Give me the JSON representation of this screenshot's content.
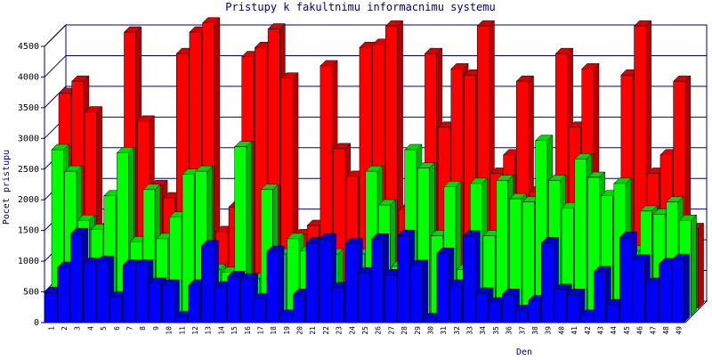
{
  "chart_data": {
    "type": "bar3d",
    "title": "Pristupy k fakultnimu informacnimu systemu",
    "x_label": "Den",
    "y_label": "Pocet pristupu",
    "categories": [
      "1",
      "2",
      "3",
      "4",
      "5",
      "6",
      "7",
      "8",
      "9",
      "10",
      "11",
      "12",
      "13",
      "14",
      "15",
      "16",
      "17",
      "18",
      "19",
      "20",
      "21",
      "22",
      "23",
      "24",
      "25",
      "26",
      "27",
      "28",
      "29",
      "30",
      "31",
      "32",
      "33",
      "34",
      "35",
      "36",
      "37",
      "38",
      "39",
      "40",
      "41",
      "42",
      "43",
      "44",
      "45",
      "46",
      "47",
      "48",
      "49"
    ],
    "series": [
      {
        "color": "#ff0000",
        "values": [
          3500,
          3700,
          3200,
          1300,
          1500,
          4500,
          3050,
          2000,
          1800,
          4150,
          4500,
          4650,
          1250,
          1650,
          4100,
          4250,
          4550,
          3750,
          1200,
          1350,
          3950,
          2600,
          2150,
          4250,
          4300,
          4600,
          1600,
          1700,
          4150,
          2950,
          3900,
          3800,
          4600,
          2200,
          2500,
          3700,
          1900,
          1800,
          4150,
          2950,
          3900,
          1200,
          1650,
          3800,
          4600,
          2200,
          2500,
          3700,
          1300
        ]
      },
      {
        "color": "#00ff00",
        "values": [
          2700,
          2350,
          1550,
          1400,
          1950,
          2650,
          1200,
          2050,
          1250,
          1600,
          2300,
          2350,
          750,
          700,
          2750,
          600,
          2050,
          1000,
          1250,
          1050,
          300,
          1000,
          450,
          1000,
          2350,
          1800,
          800,
          2700,
          2400,
          1300,
          2100,
          750,
          2150,
          1300,
          2200,
          1900,
          1850,
          2850,
          2200,
          1750,
          2550,
          2250,
          1950,
          2150,
          1050,
          1700,
          1650,
          1850,
          1550
        ]
      },
      {
        "color": "#0000ff",
        "values": [
          490,
          900,
          1450,
          970,
          1000,
          420,
          940,
          940,
          640,
          610,
          100,
          610,
          1250,
          580,
          750,
          710,
          390,
          1160,
          120,
          460,
          1300,
          1360,
          570,
          1290,
          810,
          1360,
          780,
          1420,
          930,
          70,
          1130,
          610,
          1410,
          480,
          320,
          460,
          200,
          360,
          1300,
          540,
          460,
          120,
          830,
          290,
          1390,
          1020,
          640,
          960,
          1030
        ]
      }
    ],
    "ylim": [
      0,
      4500
    ],
    "yticks": [
      0,
      500,
      1000,
      1500,
      2000,
      2500,
      3000,
      3500,
      4000,
      4500
    ],
    "grid": true
  }
}
